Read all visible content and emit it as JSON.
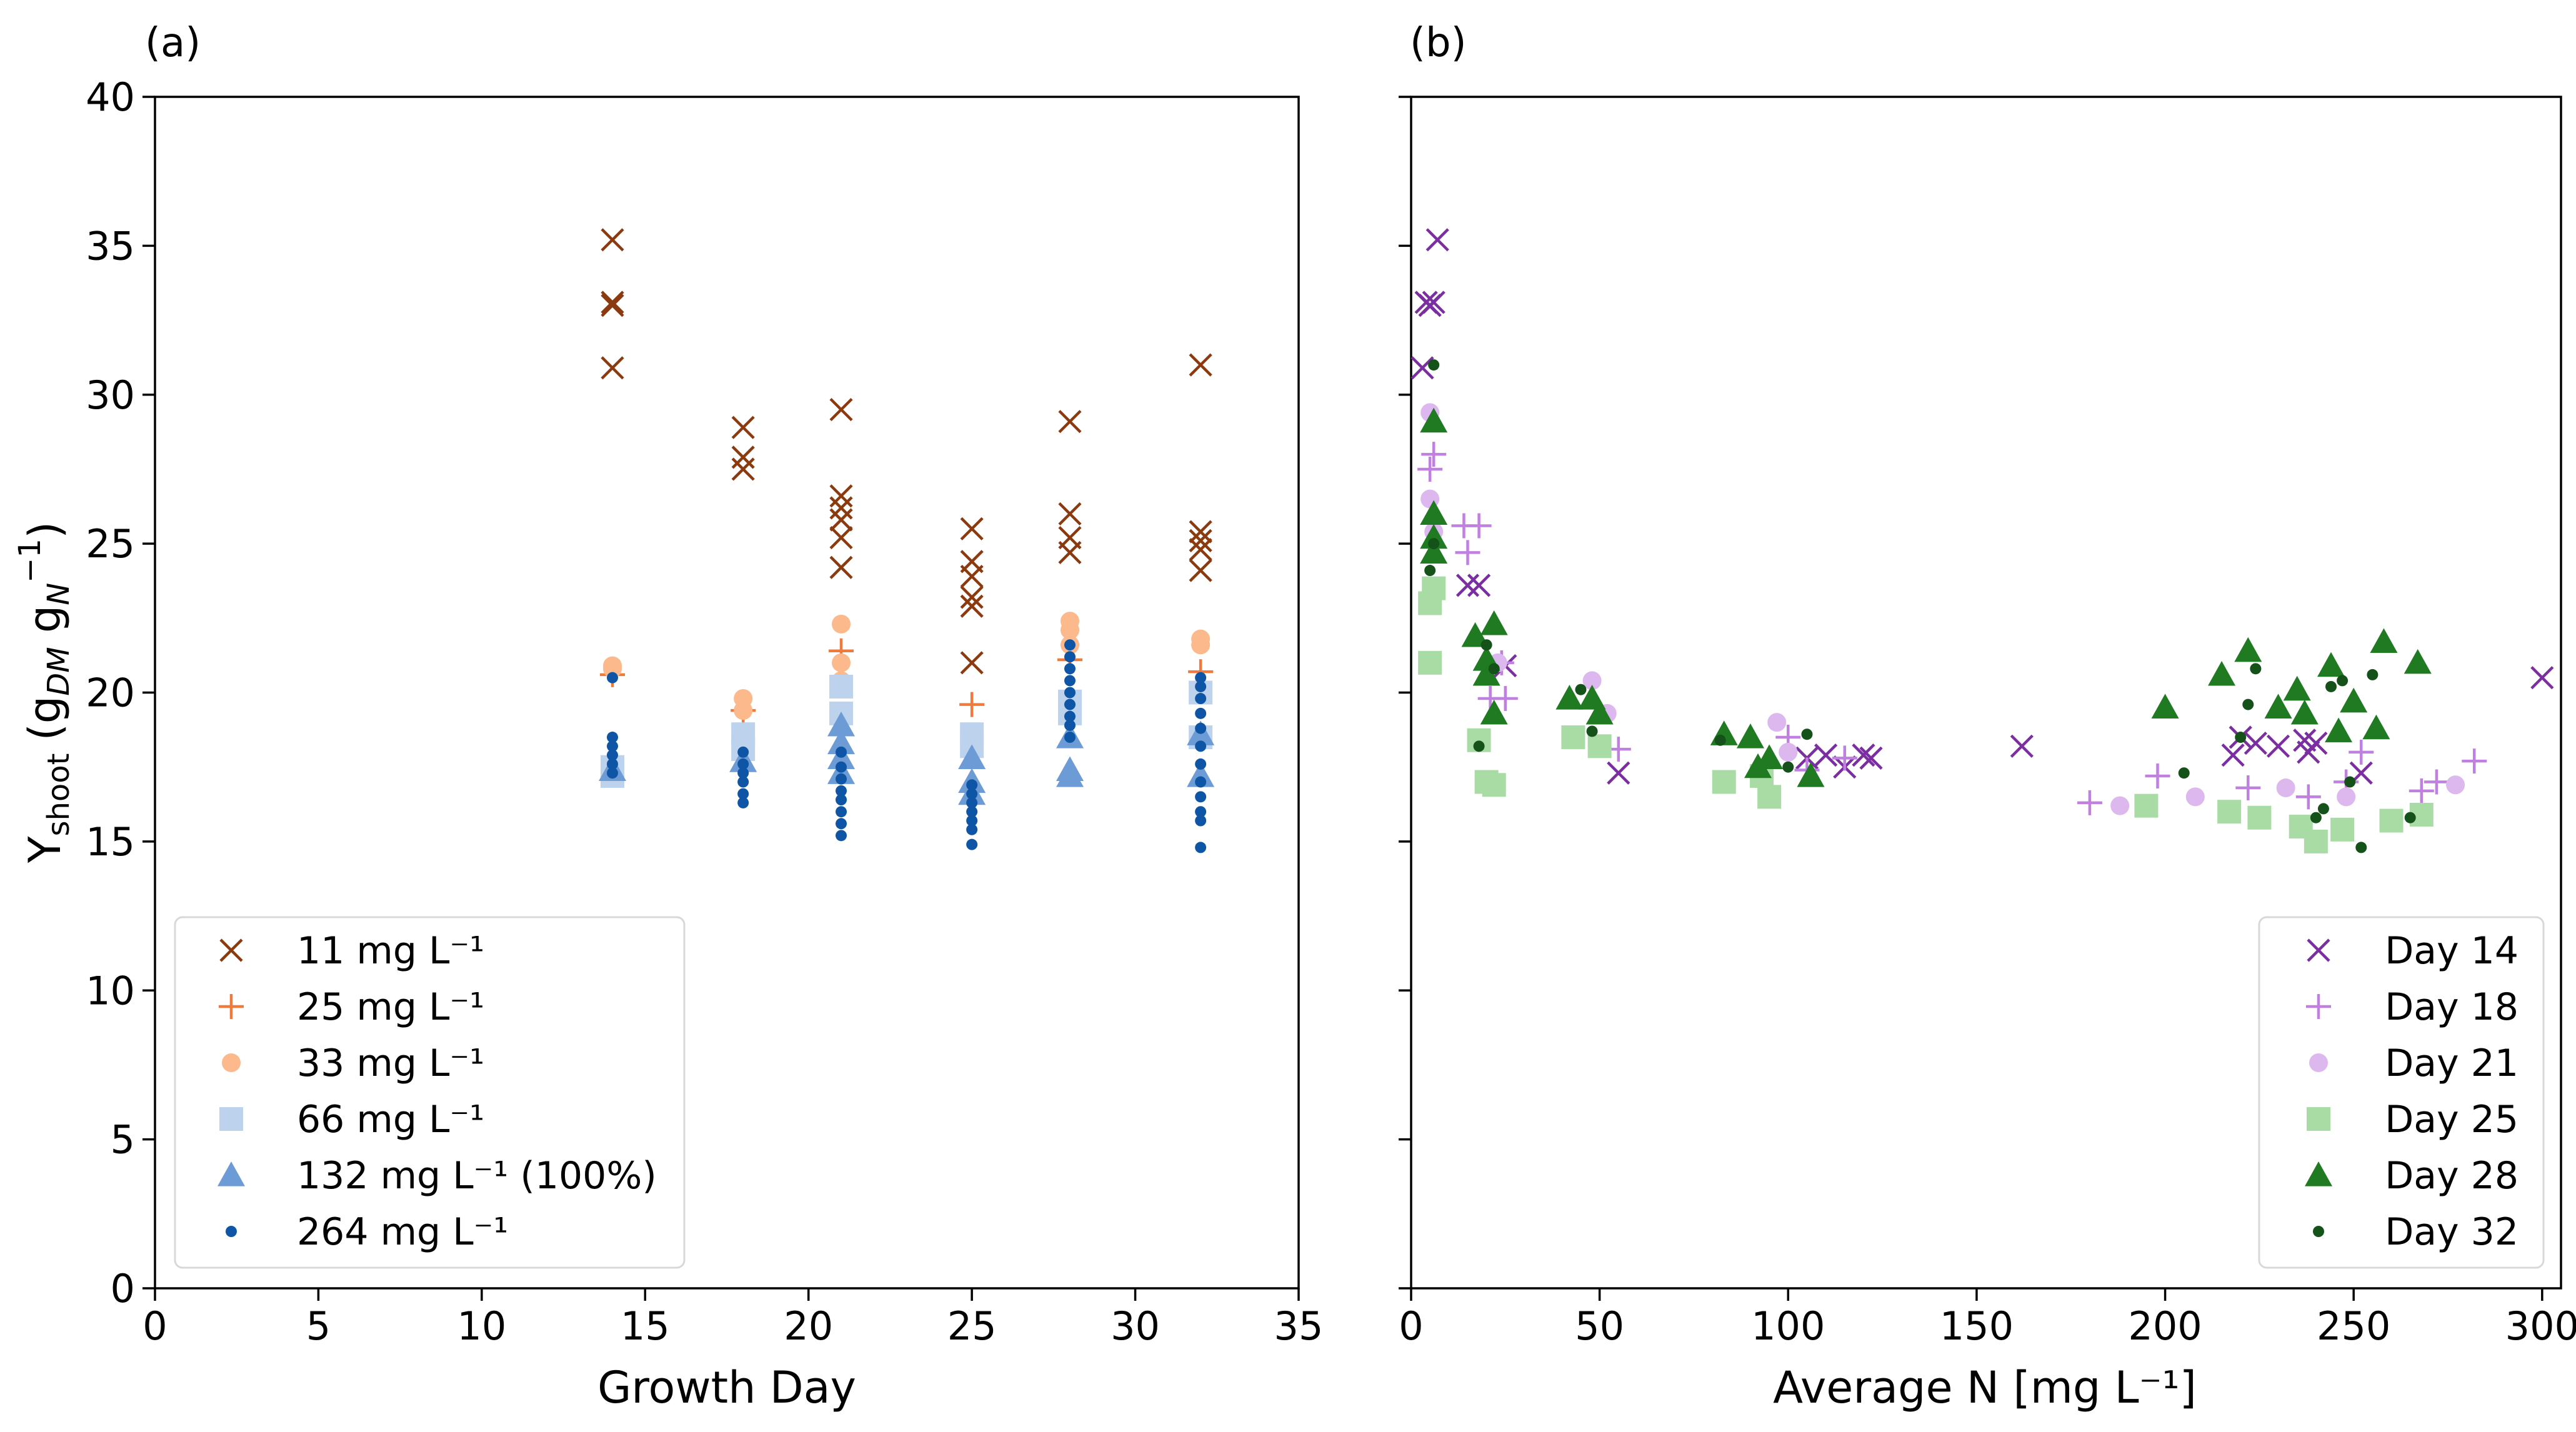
{
  "colors": {
    "11": "#8b3a10",
    "25": "#f07a3c",
    "33": "#fcb98c",
    "66": "#bcd2ed",
    "132": "#6c9bd6",
    "264": "#0e56a5",
    "day14": "#7a2ea0",
    "day18": "#c080e0",
    "day21": "#dcb8ee",
    "day25": "#a8dca4",
    "day28": "#207a22",
    "day32": "#14521a"
  },
  "chart_data": [
    {
      "type": "scatter",
      "panel_label": "(a)",
      "xlabel": "Growth Day",
      "ylabel_main": "Y",
      "ylabel_sub": "shoot",
      "ylabel_g1": "(g",
      "ylabel_g1sub": "DM",
      "ylabel_g2": " g",
      "ylabel_g2sub": "N",
      "ylabel_sup": "−1",
      "ylabel_end": ")",
      "xlim": [
        0,
        35
      ],
      "ylim": [
        0,
        40
      ],
      "xticks": [
        0,
        5,
        10,
        15,
        20,
        25,
        30,
        35
      ],
      "yticks": [
        0,
        5,
        10,
        15,
        20,
        25,
        30,
        35,
        40
      ],
      "legend_position": "lower-left",
      "series": [
        {
          "name": "11 mg L⁻¹",
          "marker": "x",
          "color_key": "11",
          "points": [
            [
              14,
              35.2
            ],
            [
              14,
              33.1
            ],
            [
              14,
              33.0
            ],
            [
              14,
              30.9
            ],
            [
              18,
              28.9
            ],
            [
              18,
              27.9
            ],
            [
              18,
              27.5
            ],
            [
              21,
              29.5
            ],
            [
              21,
              26.6
            ],
            [
              21,
              26.2
            ],
            [
              21,
              25.8
            ],
            [
              21,
              25.2
            ],
            [
              21,
              24.2
            ],
            [
              25,
              25.5
            ],
            [
              25,
              24.4
            ],
            [
              25,
              23.9
            ],
            [
              25,
              23.2
            ],
            [
              25,
              22.9
            ],
            [
              25,
              21.0
            ],
            [
              28,
              29.1
            ],
            [
              28,
              26.0
            ],
            [
              28,
              25.2
            ],
            [
              28,
              24.7
            ],
            [
              32,
              31.0
            ],
            [
              32,
              25.4
            ],
            [
              32,
              25.1
            ],
            [
              32,
              24.8
            ],
            [
              32,
              24.1
            ]
          ]
        },
        {
          "name": "25 mg L⁻¹",
          "marker": "+",
          "color_key": "25",
          "points": [
            [
              14,
              20.6
            ],
            [
              18,
              19.4
            ],
            [
              21,
              21.4
            ],
            [
              25,
              19.6
            ],
            [
              28,
              21.1
            ],
            [
              32,
              20.7
            ]
          ]
        },
        {
          "name": "33 mg L⁻¹",
          "marker": "circle",
          "color_key": "33",
          "points": [
            [
              14,
              20.9
            ],
            [
              14,
              20.8
            ],
            [
              18,
              19.8
            ],
            [
              18,
              19.4
            ],
            [
              21,
              22.3
            ],
            [
              21,
              21.0
            ],
            [
              21,
              20.4
            ],
            [
              28,
              22.4
            ],
            [
              28,
              22.1
            ],
            [
              28,
              21.6
            ],
            [
              32,
              21.8
            ],
            [
              32,
              21.6
            ]
          ]
        },
        {
          "name": "66 mg L⁻¹",
          "marker": "square",
          "color_key": "66",
          "points": [
            [
              14,
              17.5
            ],
            [
              14,
              17.2
            ],
            [
              18,
              18.6
            ],
            [
              18,
              18.1
            ],
            [
              21,
              20.2
            ],
            [
              21,
              19.3
            ],
            [
              25,
              18.6
            ],
            [
              25,
              18.2
            ],
            [
              28,
              19.7
            ],
            [
              28,
              19.3
            ],
            [
              32,
              20.0
            ],
            [
              32,
              18.5
            ]
          ]
        },
        {
          "name": "132 mg L⁻¹ (100%)",
          "marker": "triangle",
          "color_key": "132",
          "points": [
            [
              14,
              17.4
            ],
            [
              18,
              17.7
            ],
            [
              21,
              18.9
            ],
            [
              21,
              18.3
            ],
            [
              21,
              17.8
            ],
            [
              21,
              17.3
            ],
            [
              25,
              17.8
            ],
            [
              25,
              17.0
            ],
            [
              25,
              16.6
            ],
            [
              28,
              18.5
            ],
            [
              28,
              17.4
            ],
            [
              28,
              17.2
            ],
            [
              32,
              18.6
            ],
            [
              32,
              17.2
            ]
          ]
        },
        {
          "name": "264 mg L⁻¹",
          "marker": "dot",
          "color_key": "264",
          "points": [
            [
              14,
              20.5
            ],
            [
              14,
              18.5
            ],
            [
              14,
              18.2
            ],
            [
              14,
              17.9
            ],
            [
              14,
              17.6
            ],
            [
              14,
              17.3
            ],
            [
              18,
              18.0
            ],
            [
              18,
              17.6
            ],
            [
              18,
              17.3
            ],
            [
              18,
              17.0
            ],
            [
              18,
              16.6
            ],
            [
              18,
              16.3
            ],
            [
              21,
              18.0
            ],
            [
              21,
              17.5
            ],
            [
              21,
              17.1
            ],
            [
              21,
              16.7
            ],
            [
              21,
              16.4
            ],
            [
              21,
              16.0
            ],
            [
              21,
              15.6
            ],
            [
              21,
              15.2
            ],
            [
              25,
              16.9
            ],
            [
              25,
              16.6
            ],
            [
              25,
              16.3
            ],
            [
              25,
              16.0
            ],
            [
              25,
              15.7
            ],
            [
              25,
              15.4
            ],
            [
              25,
              14.9
            ],
            [
              28,
              21.6
            ],
            [
              28,
              21.2
            ],
            [
              28,
              20.8
            ],
            [
              28,
              20.4
            ],
            [
              28,
              20.0
            ],
            [
              28,
              19.6
            ],
            [
              28,
              19.2
            ],
            [
              28,
              18.9
            ],
            [
              28,
              18.5
            ],
            [
              32,
              20.5
            ],
            [
              32,
              20.2
            ],
            [
              32,
              19.8
            ],
            [
              32,
              19.3
            ],
            [
              32,
              18.8
            ],
            [
              32,
              18.2
            ],
            [
              32,
              17.6
            ],
            [
              32,
              17.0
            ],
            [
              32,
              16.5
            ],
            [
              32,
              16.0
            ],
            [
              32,
              15.7
            ],
            [
              32,
              14.8
            ]
          ]
        }
      ]
    },
    {
      "type": "scatter",
      "panel_label": "(b)",
      "xlabel": "Average N [mg L⁻¹]",
      "xlim": [
        0,
        305
      ],
      "ylim": [
        0,
        40
      ],
      "xticks": [
        0,
        50,
        100,
        150,
        200,
        250,
        300
      ],
      "yticks": [
        0,
        5,
        10,
        15,
        20,
        25,
        30,
        35,
        40
      ],
      "legend_position": "lower-right",
      "series": [
        {
          "name": "Day 14",
          "marker": "x",
          "color_key": "day14",
          "points": [
            [
              3,
              30.9
            ],
            [
              4,
              33.1
            ],
            [
              5,
              33.0
            ],
            [
              6,
              33.1
            ],
            [
              7,
              35.2
            ],
            [
              15,
              23.6
            ],
            [
              18,
              23.6
            ],
            [
              25,
              20.9
            ],
            [
              55,
              17.3
            ],
            [
              105,
              17.8
            ],
            [
              110,
              17.9
            ],
            [
              115,
              17.5
            ],
            [
              120,
              17.9
            ],
            [
              122,
              17.8
            ],
            [
              162,
              18.2
            ],
            [
              218,
              17.9
            ],
            [
              220,
              18.5
            ],
            [
              224,
              18.3
            ],
            [
              230,
              18.2
            ],
            [
              237,
              18.4
            ],
            [
              238,
              18.0
            ],
            [
              240,
              18.3
            ],
            [
              252,
              17.3
            ],
            [
              300,
              20.5
            ]
          ]
        },
        {
          "name": "Day 18",
          "marker": "+",
          "color_key": "day18",
          "points": [
            [
              5,
              27.5
            ],
            [
              6,
              28.0
            ],
            [
              14,
              25.6
            ],
            [
              15,
              24.7
            ],
            [
              18,
              25.6
            ],
            [
              21,
              19.8
            ],
            [
              24,
              21.0
            ],
            [
              25,
              19.8
            ],
            [
              55,
              18.1
            ],
            [
              100,
              18.5
            ],
            [
              105,
              17.4
            ],
            [
              115,
              17.8
            ],
            [
              180,
              16.3
            ],
            [
              198,
              17.2
            ],
            [
              222,
              16.8
            ],
            [
              238,
              16.5
            ],
            [
              248,
              17.0
            ],
            [
              252,
              18.0
            ],
            [
              268,
              16.7
            ],
            [
              272,
              17.0
            ],
            [
              282,
              17.7
            ]
          ]
        },
        {
          "name": "Day 21",
          "marker": "circle",
          "color_key": "day21",
          "points": [
            [
              5,
              29.4
            ],
            [
              5,
              26.5
            ],
            [
              6,
              25.4
            ],
            [
              23,
              21.0
            ],
            [
              48,
              20.4
            ],
            [
              52,
              19.3
            ],
            [
              97,
              19.0
            ],
            [
              100,
              18.0
            ],
            [
              188,
              16.2
            ],
            [
              208,
              16.5
            ],
            [
              232,
              16.8
            ],
            [
              248,
              16.5
            ],
            [
              277,
              16.9
            ]
          ]
        },
        {
          "name": "Day 25",
          "marker": "square",
          "color_key": "day25",
          "points": [
            [
              5,
              23.0
            ],
            [
              5,
              21.0
            ],
            [
              6,
              23.5
            ],
            [
              18,
              18.4
            ],
            [
              20,
              17.0
            ],
            [
              22,
              16.9
            ],
            [
              43,
              18.5
            ],
            [
              50,
              18.2
            ],
            [
              83,
              17.0
            ],
            [
              93,
              17.2
            ],
            [
              95,
              16.5
            ],
            [
              195,
              16.2
            ],
            [
              217,
              16.0
            ],
            [
              225,
              15.8
            ],
            [
              236,
              15.5
            ],
            [
              240,
              15.0
            ],
            [
              247,
              15.4
            ],
            [
              260,
              15.7
            ],
            [
              268,
              15.9
            ]
          ]
        },
        {
          "name": "Day 28",
          "marker": "triangle",
          "color_key": "day28",
          "points": [
            [
              6,
              29.1
            ],
            [
              6,
              26.0
            ],
            [
              6,
              25.2
            ],
            [
              6,
              24.7
            ],
            [
              17,
              21.9
            ],
            [
              20,
              21.1
            ],
            [
              20,
              20.6
            ],
            [
              22,
              22.3
            ],
            [
              22,
              19.3
            ],
            [
              42,
              19.8
            ],
            [
              48,
              19.8
            ],
            [
              50,
              19.3
            ],
            [
              83,
              18.6
            ],
            [
              90,
              18.5
            ],
            [
              92,
              17.5
            ],
            [
              95,
              17.8
            ],
            [
              106,
              17.2
            ],
            [
              200,
              19.5
            ],
            [
              215,
              20.6
            ],
            [
              222,
              21.4
            ],
            [
              230,
              19.5
            ],
            [
              235,
              20.1
            ],
            [
              237,
              19.3
            ],
            [
              244,
              20.9
            ],
            [
              246,
              18.7
            ],
            [
              250,
              19.7
            ],
            [
              256,
              18.8
            ],
            [
              258,
              21.7
            ],
            [
              267,
              21.0
            ]
          ]
        },
        {
          "name": "Day 32",
          "marker": "dot",
          "color_key": "day32",
          "points": [
            [
              5,
              24.1
            ],
            [
              6,
              25.0
            ],
            [
              6,
              31.0
            ],
            [
              18,
              18.2
            ],
            [
              20,
              21.6
            ],
            [
              22,
              20.8
            ],
            [
              45,
              20.1
            ],
            [
              48,
              18.7
            ],
            [
              82,
              18.4
            ],
            [
              100,
              17.5
            ],
            [
              105,
              18.6
            ],
            [
              205,
              17.3
            ],
            [
              220,
              18.5
            ],
            [
              222,
              19.6
            ],
            [
              224,
              20.8
            ],
            [
              240,
              15.8
            ],
            [
              242,
              16.1
            ],
            [
              244,
              20.2
            ],
            [
              247,
              20.4
            ],
            [
              249,
              17.0
            ],
            [
              252,
              14.8
            ],
            [
              255,
              20.6
            ],
            [
              265,
              15.8
            ]
          ]
        }
      ]
    }
  ]
}
